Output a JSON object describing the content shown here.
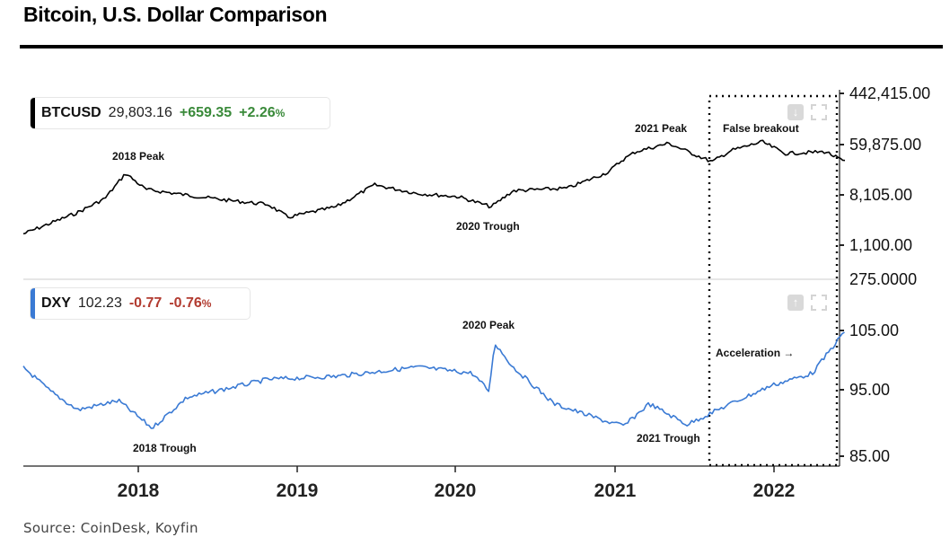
{
  "title": "Bitcoin, U.S. Dollar Comparison",
  "source": "Source: CoinDesk, Koyfin",
  "colors": {
    "btc_line": "#000000",
    "dxy_line": "#3a7ad4",
    "positive": "#3a8a3a",
    "negative": "#b23b30"
  },
  "top_panel": {
    "symbol": "BTCUSD",
    "price": "29,803.16",
    "change": "+659.35",
    "change_pct": "+2.26",
    "pct_sign": "%"
  },
  "bottom_panel": {
    "symbol": "DXY",
    "price": "102.23",
    "change": "-0.77",
    "change_pct": "-0.76",
    "pct_sign": "%"
  },
  "icons": {
    "top_tool": "download-icon",
    "bottom_tool": "upload-icon",
    "expand": "expand-icon"
  },
  "chart_data": [
    {
      "type": "line",
      "series": [
        {
          "name": "BTCUSD",
          "x": [
            "2017-05",
            "2017-09",
            "2017-11",
            "2017-12-17",
            "2018-02",
            "2018-05",
            "2018-08",
            "2018-11",
            "2018-12-15",
            "2019-04",
            "2019-06-26",
            "2019-10",
            "2020-01",
            "2020-03-13",
            "2020-05",
            "2020-09",
            "2020-12",
            "2021-01",
            "2021-02",
            "2021-04-14",
            "2021-07-20",
            "2021-09",
            "2021-11-10",
            "2022-01",
            "2022-04",
            "2022-05-13"
          ],
          "values": [
            1700,
            4000,
            7000,
            19000,
            10000,
            8000,
            6500,
            5500,
            3300,
            5000,
            12000,
            8500,
            7500,
            5000,
            9500,
            10500,
            20000,
            32000,
            45000,
            63000,
            30000,
            47000,
            67000,
            42000,
            45000,
            29803
          ]
        }
      ],
      "y_ticks": [
        "442,415.00",
        "59,875.00",
        "8,105.00",
        "1,100.00"
      ],
      "y_scale": "log",
      "annotations": [
        "2018 Peak",
        "2020 Trough",
        "2021 Peak",
        "False breakout"
      ],
      "legend": "top-left"
    },
    {
      "type": "line",
      "series": [
        {
          "name": "DXY",
          "x": [
            "2017-05",
            "2017-07",
            "2017-09",
            "2017-12",
            "2018-02-15",
            "2018-05",
            "2018-08",
            "2018-11",
            "2019-04",
            "2019-10",
            "2020-02",
            "2020-03-09",
            "2020-03-20",
            "2020-05",
            "2020-08",
            "2020-12",
            "2021-01-06",
            "2021-03",
            "2021-05-25",
            "2021-09",
            "2021-12",
            "2022-03",
            "2022-05-12"
          ],
          "values": [
            99,
            95,
            92,
            93.5,
            89,
            94,
            95.5,
            97,
            97.5,
            99,
            98,
            95,
            103,
            99,
            93,
            90,
            89.4,
            93,
            89.6,
            93,
            96,
            98,
            104.8
          ]
        }
      ],
      "y_ticks": [
        "275.0000",
        "105.00",
        "95.00",
        "85.00"
      ],
      "annotations": [
        "2020 Peak",
        "2018 Trough",
        "2021 Trough",
        "Acceleration →"
      ],
      "legend": "top-left"
    }
  ],
  "x_axis": {
    "ticks": [
      "2018",
      "2019",
      "2020",
      "2021",
      "2022"
    ],
    "range": [
      "2017-05",
      "2022-05"
    ]
  }
}
